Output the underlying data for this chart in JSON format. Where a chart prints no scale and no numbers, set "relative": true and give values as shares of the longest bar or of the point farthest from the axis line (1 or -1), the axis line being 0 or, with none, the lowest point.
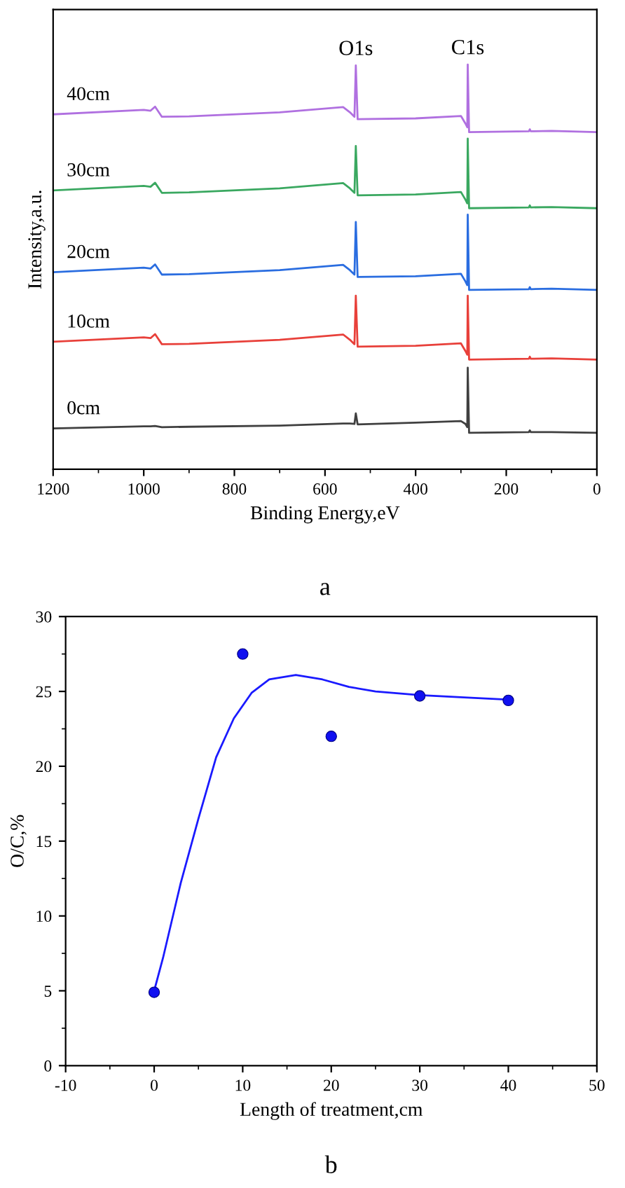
{
  "chart_data": [
    {
      "type": "line",
      "title": "a",
      "xlabel": "Binding Energy,eV",
      "ylabel": "Intensity,a.u.",
      "relative": true,
      "tick_labels": "x",
      "xlim": [
        1200,
        0
      ],
      "xticks": [
        1200,
        1000,
        800,
        600,
        400,
        200,
        0
      ],
      "x": [
        1200,
        1000,
        985,
        975,
        960,
        900,
        700,
        560,
        545,
        535,
        532,
        528,
        400,
        300,
        290,
        286,
        285,
        282,
        150,
        148,
        146,
        100,
        0
      ],
      "series": [
        {
          "name": "0cm",
          "color": "#404040",
          "values": [
            0.101,
            0.106,
            0.106,
            0.107,
            0.104,
            0.105,
            0.108,
            0.113,
            0.113,
            0.112,
            0.138,
            0.111,
            0.115,
            0.119,
            0.112,
            0.104,
            0.251,
            0.09,
            0.092,
            0.096,
            0.092,
            0.092,
            0.09
          ]
        },
        {
          "name": "10cm",
          "color": "#e8403a",
          "values": [
            0.315,
            0.326,
            0.324,
            0.334,
            0.309,
            0.31,
            0.32,
            0.333,
            0.32,
            0.309,
            0.429,
            0.303,
            0.305,
            0.311,
            0.292,
            0.283,
            0.429,
            0.271,
            0.273,
            0.278,
            0.273,
            0.274,
            0.271
          ]
        },
        {
          "name": "20cm",
          "color": "#2a6de0",
          "values": [
            0.487,
            0.498,
            0.496,
            0.506,
            0.481,
            0.482,
            0.492,
            0.505,
            0.492,
            0.481,
            0.611,
            0.475,
            0.477,
            0.483,
            0.464,
            0.455,
            0.629,
            0.443,
            0.445,
            0.45,
            0.445,
            0.446,
            0.443
          ]
        },
        {
          "name": "30cm",
          "color": "#3aa860",
          "values": [
            0.689,
            0.7,
            0.698,
            0.708,
            0.683,
            0.684,
            0.694,
            0.707,
            0.694,
            0.683,
            0.799,
            0.677,
            0.679,
            0.685,
            0.666,
            0.657,
            0.817,
            0.645,
            0.647,
            0.652,
            0.647,
            0.648,
            0.645
          ]
        },
        {
          "name": "40cm",
          "color": "#b070e0",
          "values": [
            0.877,
            0.888,
            0.886,
            0.896,
            0.871,
            0.872,
            0.882,
            0.895,
            0.882,
            0.871,
            0.998,
            0.865,
            0.867,
            0.873,
            0.854,
            0.845,
            1.0,
            0.833,
            0.835,
            0.84,
            0.835,
            0.836,
            0.833
          ]
        }
      ],
      "annotations": [
        {
          "text": "O1s",
          "x": 532,
          "y": 0.998
        },
        {
          "text": "C1s",
          "x": 285,
          "y": 1.0
        }
      ]
    },
    {
      "type": "scatter",
      "title": "b",
      "xlabel": "Length of treatment,cm",
      "ylabel": "O/C,%",
      "xlim": [
        -10,
        50
      ],
      "xticks": [
        -10,
        0,
        10,
        20,
        30,
        40,
        50
      ],
      "ylim": [
        0,
        30
      ],
      "yticks": [
        0,
        5,
        10,
        15,
        20,
        25,
        30
      ],
      "series": [
        {
          "type": "scatter",
          "color": "#1010f0",
          "marker": "circle",
          "x": [
            0,
            10,
            20,
            30,
            40
          ],
          "values": [
            4.9,
            27.5,
            22.0,
            24.7,
            24.4
          ]
        },
        {
          "type": "line",
          "color": "#1a1aff",
          "marker": "none",
          "x": [
            0,
            1,
            2,
            3,
            5,
            7,
            9,
            11,
            13,
            16,
            19,
            22,
            25,
            30,
            35,
            40
          ],
          "values": [
            5.0,
            7.2,
            9.7,
            12.2,
            16.5,
            20.6,
            23.2,
            24.9,
            25.8,
            26.1,
            25.8,
            25.3,
            25.0,
            24.75,
            24.6,
            24.45
          ]
        }
      ]
    }
  ]
}
